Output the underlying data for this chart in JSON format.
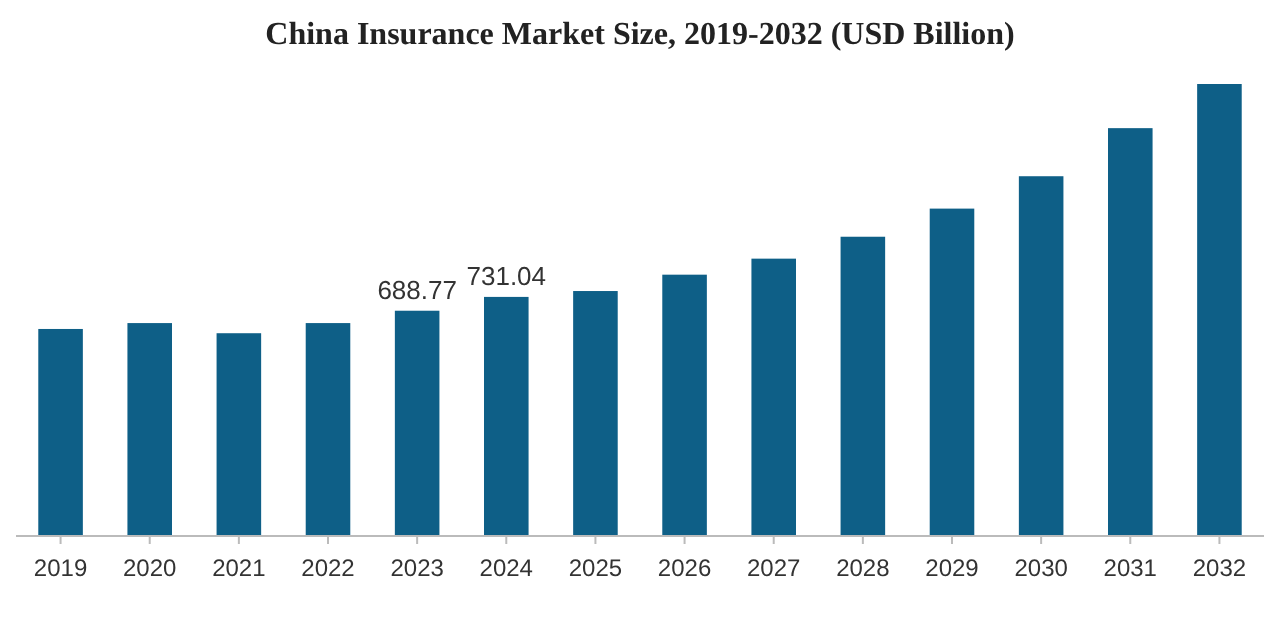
{
  "chart_data": {
    "type": "bar",
    "title": "China Insurance Market Size, 2019-2032 (USD Billion)",
    "categories": [
      "2019",
      "2020",
      "2021",
      "2022",
      "2023",
      "2024",
      "2025",
      "2026",
      "2027",
      "2028",
      "2029",
      "2030",
      "2031",
      "2032"
    ],
    "values": [
      633,
      651,
      620,
      651,
      688.77,
      731.04,
      749,
      799,
      848,
      915,
      1001,
      1100,
      1247,
      1382
    ],
    "value_labels": [
      null,
      null,
      null,
      null,
      "688.77",
      "731.04",
      null,
      null,
      null,
      null,
      null,
      null,
      null,
      null
    ],
    "color": "#0e5f87"
  }
}
